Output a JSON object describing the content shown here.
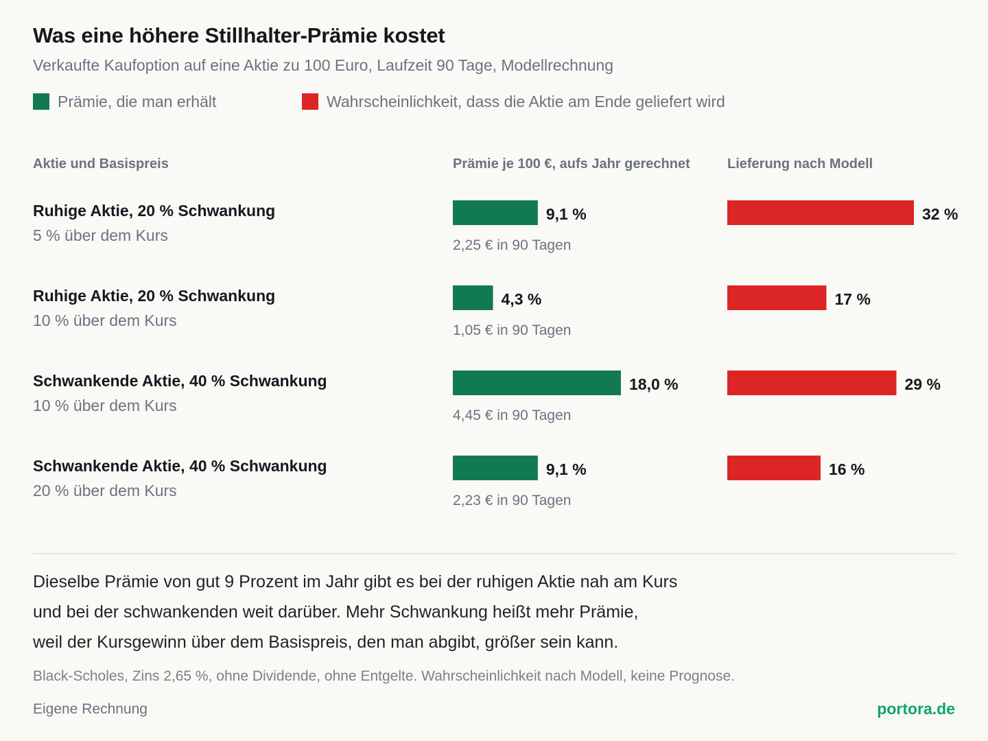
{
  "title": "Was eine höhere Stillhalter-Prämie kostet",
  "subtitle": "Verkaufte Kaufoption auf eine Aktie zu 100 Euro, Laufzeit 90 Tage, Modellrechnung",
  "legend": {
    "premium": "Prämie, die man erhält",
    "probability": "Wahrscheinlichkeit, dass die Aktie am Ende geliefert wird"
  },
  "colors": {
    "premium": "#127a52",
    "probability": "#dc2626",
    "brand": "#10a56a"
  },
  "columns": {
    "stock": "Aktie und Basispreis",
    "premium": "Prämie je 100 €, aufs Jahr gerechnet",
    "delivery": "Lieferung nach Modell"
  },
  "chart_data": {
    "type": "bar",
    "categories": [
      "Ruhige Aktie, 20 % Schwankung / 5 % über dem Kurs",
      "Ruhige Aktie, 20 % Schwankung / 10 % über dem Kurs",
      "Schwankende Aktie, 40 % Schwankung / 10 % über dem Kurs",
      "Schwankende Aktie, 40 % Schwankung / 20 % über dem Kurs"
    ],
    "series": [
      {
        "name": "Prämie, die man erhält",
        "unit": "%",
        "values": [
          9.1,
          4.3,
          18.0,
          9.1
        ],
        "labels": [
          "9,1 %",
          "4,3 %",
          "18,0 %",
          "9,1 %"
        ]
      },
      {
        "name": "Wahrscheinlichkeit, dass die Aktie am Ende geliefert wird",
        "unit": "%",
        "values": [
          32,
          17,
          29,
          16
        ],
        "labels": [
          "32 %",
          "17 %",
          "29 %",
          "16 %"
        ]
      }
    ],
    "rows": [
      {
        "title": "Ruhige Aktie, 20 % Schwankung",
        "sub": "5 % über dem Kurs",
        "premium_abs": "2,25 € in 90 Tagen"
      },
      {
        "title": "Ruhige Aktie, 20 % Schwankung",
        "sub": "10 % über dem Kurs",
        "premium_abs": "1,05 € in 90 Tagen"
      },
      {
        "title": "Schwankende Aktie, 40 % Schwankung",
        "sub": "10 % über dem Kurs",
        "premium_abs": "4,45 € in 90 Tagen"
      },
      {
        "title": "Schwankende Aktie, 40 % Schwankung",
        "sub": "20 % über dem Kurs",
        "premium_abs": "2,23 € in 90 Tagen"
      }
    ],
    "legend_position": "top-left",
    "grid": false
  },
  "conclusion": [
    "Dieselbe Prämie von gut 9 Prozent im Jahr gibt es bei der ruhigen Aktie nah am Kurs",
    "und bei der schwankenden weit darüber. Mehr Schwankung heißt mehr Prämie,",
    "weil der Kursgewinn über dem Basispreis, den man abgibt, größer sein kann."
  ],
  "footnote": "Black-Scholes, Zins 2,65 %, ohne Dividende, ohne Entgelte. Wahrscheinlichkeit nach Modell, keine Prognose.",
  "source": "Eigene Rechnung",
  "brand": "portora.de"
}
